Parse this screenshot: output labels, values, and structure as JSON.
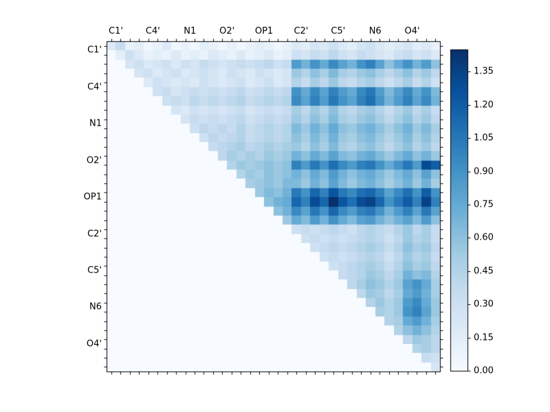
{
  "figure": {
    "background": "#ffffff",
    "frame_color": "#000000",
    "label_color": "#000000"
  },
  "chart_data": {
    "type": "heatmap",
    "title": "",
    "x_tick_labels": [
      "C1'",
      "C4'",
      "N1",
      "O2'",
      "OP1",
      "C2'",
      "C5'",
      "N6",
      "O4'"
    ],
    "y_tick_labels": [
      "C1'",
      "C4'",
      "N1",
      "O2'",
      "OP1",
      "C2'",
      "C5'",
      "N6",
      "O4'"
    ],
    "n_cells": 36,
    "cells_per_label": 4,
    "vmin": 0.0,
    "vmax": 1.45,
    "lower_triangle_value": 0,
    "colormap": "Blues",
    "colormap_stops": [
      "#f7fbff",
      "#deebf7",
      "#c6dbef",
      "#9ecae1",
      "#6baed6",
      "#4292c6",
      "#2171b5",
      "#08519c",
      "#08306b"
    ],
    "colorbar_tick_values": [
      1.35,
      1.2,
      1.05,
      0.9,
      0.75,
      0.6,
      0.45,
      0.3,
      0.15,
      0.0
    ],
    "colorbar_tick_labels": [
      "1.35",
      "1.20",
      "1.05",
      "0.90",
      "0.75",
      "0.60",
      "0.45",
      "0.30",
      "0.15",
      "0.00"
    ],
    "matrix_upper": [
      [
        0.2,
        0.35,
        0.1,
        0.15,
        0.05,
        0.1,
        0.2,
        0.05,
        0.1,
        0.05,
        0.15,
        0.1,
        0.05,
        0.1,
        0.05,
        0.1,
        0.15,
        0.1,
        0.05,
        0.1,
        0.2,
        0.15,
        0.25,
        0.2,
        0.3,
        0.2,
        0.15,
        0.25,
        0.3,
        0.2,
        0.15,
        0.2,
        0.25,
        0.15,
        0.2,
        0.1
      ],
      [
        0.15,
        0.3,
        0.2,
        0.1,
        0.15,
        0.1,
        0.2,
        0.1,
        0.15,
        0.1,
        0.2,
        0.15,
        0.1,
        0.2,
        0.1,
        0.15,
        0.2,
        0.1,
        0.15,
        0.3,
        0.25,
        0.35,
        0.3,
        0.4,
        0.3,
        0.25,
        0.35,
        0.3,
        0.25,
        0.2,
        0.3,
        0.35,
        0.25,
        0.3,
        0.2
      ],
      [
        0.25,
        0.3,
        0.2,
        0.25,
        0.3,
        0.2,
        0.3,
        0.25,
        0.35,
        0.3,
        0.25,
        0.3,
        0.35,
        0.3,
        0.35,
        0.4,
        0.3,
        0.35,
        0.85,
        0.7,
        0.9,
        0.75,
        0.95,
        0.8,
        0.7,
        0.9,
        1.0,
        0.8,
        0.6,
        0.75,
        0.9,
        0.7,
        0.85,
        0.6
      ],
      [
        0.25,
        0.3,
        0.2,
        0.25,
        0.3,
        0.2,
        0.25,
        0.3,
        0.25,
        0.2,
        0.3,
        0.25,
        0.2,
        0.3,
        0.25,
        0.2,
        0.25,
        0.55,
        0.45,
        0.6,
        0.5,
        0.65,
        0.5,
        0.45,
        0.55,
        0.6,
        0.5,
        0.4,
        0.5,
        0.6,
        0.45,
        0.55,
        0.4
      ],
      [
        0.2,
        0.3,
        0.25,
        0.2,
        0.25,
        0.2,
        0.3,
        0.25,
        0.2,
        0.25,
        0.3,
        0.2,
        0.25,
        0.3,
        0.2,
        0.25,
        0.45,
        0.35,
        0.5,
        0.4,
        0.55,
        0.4,
        0.35,
        0.45,
        0.5,
        0.4,
        0.3,
        0.4,
        0.5,
        0.35,
        0.45,
        0.3
      ],
      [
        0.3,
        0.35,
        0.25,
        0.3,
        0.35,
        0.3,
        0.35,
        0.3,
        0.35,
        0.4,
        0.3,
        0.35,
        0.4,
        0.35,
        0.4,
        0.9,
        0.75,
        0.95,
        0.8,
        1.0,
        0.85,
        0.75,
        0.95,
        1.05,
        0.85,
        0.65,
        0.8,
        0.95,
        0.75,
        0.9,
        0.65
      ],
      [
        0.3,
        0.35,
        0.3,
        0.4,
        0.35,
        0.4,
        0.35,
        0.4,
        0.45,
        0.35,
        0.4,
        0.45,
        0.4,
        0.45,
        0.95,
        0.8,
        1.0,
        0.85,
        1.05,
        0.9,
        0.8,
        1.0,
        1.1,
        0.9,
        0.7,
        0.85,
        1.0,
        0.8,
        0.95,
        0.7
      ],
      [
        0.25,
        0.2,
        0.3,
        0.25,
        0.3,
        0.25,
        0.3,
        0.35,
        0.25,
        0.3,
        0.35,
        0.3,
        0.35,
        0.5,
        0.4,
        0.55,
        0.45,
        0.6,
        0.45,
        0.4,
        0.5,
        0.55,
        0.45,
        0.35,
        0.45,
        0.55,
        0.4,
        0.5,
        0.35
      ],
      [
        0.25,
        0.35,
        0.3,
        0.35,
        0.3,
        0.35,
        0.4,
        0.3,
        0.35,
        0.4,
        0.35,
        0.4,
        0.55,
        0.45,
        0.6,
        0.5,
        0.65,
        0.5,
        0.45,
        0.55,
        0.6,
        0.5,
        0.4,
        0.5,
        0.6,
        0.45,
        0.55,
        0.4
      ],
      [
        0.3,
        0.4,
        0.35,
        0.4,
        0.35,
        0.45,
        0.35,
        0.4,
        0.45,
        0.4,
        0.45,
        0.65,
        0.55,
        0.7,
        0.6,
        0.75,
        0.6,
        0.55,
        0.65,
        0.7,
        0.6,
        0.5,
        0.6,
        0.7,
        0.55,
        0.65,
        0.5
      ],
      [
        0.3,
        0.4,
        0.35,
        0.4,
        0.45,
        0.35,
        0.4,
        0.45,
        0.4,
        0.45,
        0.6,
        0.5,
        0.65,
        0.55,
        0.7,
        0.55,
        0.5,
        0.6,
        0.65,
        0.55,
        0.45,
        0.55,
        0.65,
        0.5,
        0.6,
        0.45
      ],
      [
        0.35,
        0.4,
        0.45,
        0.5,
        0.4,
        0.45,
        0.5,
        0.45,
        0.5,
        0.55,
        0.45,
        0.6,
        0.5,
        0.65,
        0.5,
        0.45,
        0.55,
        0.6,
        0.5,
        0.4,
        0.5,
        0.6,
        0.45,
        0.55,
        0.4
      ],
      [
        0.4,
        0.5,
        0.45,
        0.5,
        0.45,
        0.55,
        0.5,
        0.55,
        0.7,
        0.6,
        0.75,
        0.65,
        0.8,
        0.65,
        0.6,
        0.7,
        0.75,
        0.65,
        0.55,
        0.65,
        0.75,
        0.6,
        0.7,
        0.55
      ],
      [
        0.45,
        0.55,
        0.5,
        0.55,
        0.6,
        0.55,
        0.6,
        1.0,
        0.85,
        1.05,
        0.9,
        1.1,
        0.95,
        0.85,
        1.0,
        1.05,
        0.9,
        0.75,
        0.9,
        1.05,
        0.85,
        1.3,
        1.2
      ],
      [
        0.45,
        0.55,
        0.5,
        0.6,
        0.55,
        0.6,
        0.7,
        0.6,
        0.75,
        0.65,
        0.85,
        0.7,
        0.6,
        0.7,
        0.75,
        0.65,
        0.55,
        0.65,
        0.75,
        0.6,
        0.8,
        0.6
      ],
      [
        0.5,
        0.55,
        0.6,
        0.55,
        0.65,
        0.65,
        0.55,
        0.7,
        0.6,
        0.8,
        0.65,
        0.55,
        0.65,
        0.7,
        0.6,
        0.5,
        0.6,
        0.7,
        0.55,
        0.7,
        0.5
      ],
      [
        0.55,
        0.65,
        0.6,
        0.7,
        1.05,
        0.9,
        1.15,
        1.0,
        1.25,
        1.05,
        0.95,
        1.1,
        1.15,
        1.0,
        0.8,
        0.95,
        1.1,
        0.9,
        1.2,
        0.9
      ],
      [
        0.6,
        0.7,
        0.75,
        1.15,
        1.0,
        1.3,
        1.15,
        1.45,
        1.25,
        1.1,
        1.3,
        1.35,
        1.15,
        0.9,
        1.05,
        1.2,
        1.0,
        1.35,
        1.0
      ],
      [
        0.6,
        0.7,
        0.95,
        0.8,
        1.05,
        0.9,
        1.15,
        0.95,
        0.85,
        1.0,
        1.05,
        0.9,
        0.7,
        0.85,
        1.0,
        0.8,
        1.05,
        0.8
      ],
      [
        0.55,
        0.75,
        0.65,
        0.85,
        0.7,
        0.9,
        0.75,
        0.65,
        0.8,
        0.85,
        0.7,
        0.6,
        0.7,
        0.8,
        0.65,
        0.85,
        0.6
      ],
      [
        0.3,
        0.35,
        0.3,
        0.35,
        0.4,
        0.35,
        0.3,
        0.4,
        0.45,
        0.4,
        0.35,
        0.45,
        0.55,
        0.4,
        0.5,
        0.35
      ],
      [
        0.3,
        0.35,
        0.3,
        0.35,
        0.3,
        0.35,
        0.4,
        0.45,
        0.4,
        0.3,
        0.4,
        0.55,
        0.45,
        0.5,
        0.35
      ],
      [
        0.3,
        0.35,
        0.4,
        0.35,
        0.4,
        0.45,
        0.5,
        0.45,
        0.35,
        0.45,
        0.6,
        0.5,
        0.55,
        0.4
      ],
      [
        0.3,
        0.35,
        0.3,
        0.35,
        0.4,
        0.45,
        0.4,
        0.3,
        0.4,
        0.55,
        0.45,
        0.5,
        0.35
      ],
      [
        0.3,
        0.35,
        0.4,
        0.45,
        0.5,
        0.45,
        0.35,
        0.45,
        0.6,
        0.5,
        0.55,
        0.4
      ],
      [
        0.35,
        0.4,
        0.45,
        0.55,
        0.5,
        0.4,
        0.5,
        0.7,
        0.6,
        0.65,
        0.45
      ],
      [
        0.4,
        0.5,
        0.6,
        0.55,
        0.45,
        0.55,
        0.8,
        0.9,
        0.75,
        0.5
      ],
      [
        0.4,
        0.55,
        0.5,
        0.4,
        0.5,
        0.75,
        0.85,
        0.7,
        0.5
      ],
      [
        0.45,
        0.55,
        0.45,
        0.55,
        0.85,
        0.95,
        0.75,
        0.55
      ],
      [
        0.5,
        0.45,
        0.55,
        0.9,
        1.0,
        0.8,
        0.55
      ],
      [
        0.45,
        0.5,
        0.75,
        0.85,
        0.7,
        0.5
      ],
      [
        0.45,
        0.6,
        0.7,
        0.6,
        0.45
      ],
      [
        0.4,
        0.55,
        0.5,
        0.4
      ],
      [
        0.45,
        0.5,
        0.4
      ],
      [
        0.35,
        0.3
      ],
      [
        0.25
      ]
    ]
  }
}
